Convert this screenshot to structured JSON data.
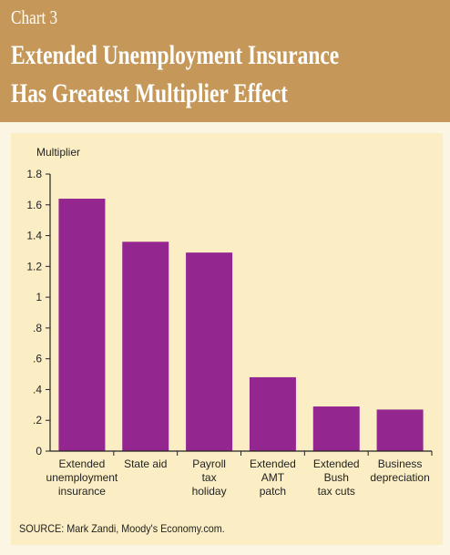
{
  "header": {
    "chart_label": "Chart 3",
    "title_line_1": "Extended Unemployment Insurance",
    "title_line_2": "Has Greatest Multiplier Effect",
    "background_color": "#c5985a"
  },
  "source": "SOURCE: Mark Zandi, Moody's Economy.com.",
  "chart_data": {
    "type": "bar",
    "title": "Extended Unemployment Insurance Has Greatest Multiplier Effect",
    "ylabel": "Multiplier",
    "xlabel": "",
    "categories": [
      [
        "Extended",
        "unemployment",
        "insurance"
      ],
      [
        "State aid"
      ],
      [
        "Payroll",
        "tax",
        "holiday"
      ],
      [
        "Extended",
        "AMT",
        "patch"
      ],
      [
        "Extended",
        "Bush",
        "tax cuts"
      ],
      [
        "Business",
        "depreciation"
      ]
    ],
    "values": [
      1.64,
      1.36,
      1.29,
      0.48,
      0.29,
      0.27
    ],
    "ylim": [
      0,
      1.8
    ],
    "yticks": [
      0,
      0.2,
      0.4,
      0.6,
      0.8,
      1,
      1.2,
      1.4,
      1.6,
      1.8
    ],
    "ytick_labels": [
      "0",
      ".2",
      ".4",
      ".6",
      ".8",
      "1",
      "1.2",
      "1.4",
      "1.6",
      "1.8"
    ],
    "bar_color": "#93278f",
    "grid": false,
    "legend": "none"
  }
}
